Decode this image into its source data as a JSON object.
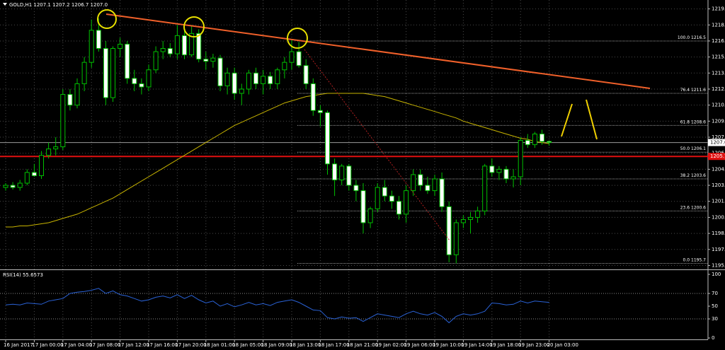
{
  "header": "GOLD,H1  1207.1 1207.2 1206.7 1207.0",
  "chart_data": [
    {
      "type": "candlestick",
      "categories": [
        "16 Jan 2017",
        null,
        null,
        null,
        "17 Jan 00:00",
        null,
        null,
        null,
        "17 Jan 04:00",
        null,
        null,
        null,
        "17 Jan 08:00",
        null,
        null,
        null,
        "17 Jan 12:00",
        null,
        null,
        null,
        "17 Jan 16:00",
        null,
        null,
        null,
        "17 Jan 20:00",
        null,
        null,
        null,
        "18 Jan 01:00",
        null,
        null,
        null,
        "18 Jan 05:00",
        null,
        null,
        null,
        "18 Jan 09:00",
        null,
        null,
        null,
        "18 Jan 13:00",
        null,
        null,
        null,
        "18 Jan 17:00",
        null,
        null,
        null,
        "18 Jan 21:00",
        null,
        null,
        null,
        "19 Jan 02:00",
        null,
        null,
        null,
        "19 Jan 06:00",
        null,
        null,
        null,
        "19 Jan 10:00",
        null,
        null,
        null,
        "19 Jan 14:00",
        null,
        null,
        null,
        "19 Jan 18:00",
        null,
        null,
        null,
        "19 Jan 23:00",
        null,
        null,
        null,
        "20 Jan 03:00"
      ],
      "open": [
        1202.8,
        1203.0,
        1202.8,
        1203.2,
        1204.2,
        1203.9,
        1205.8,
        1206.4,
        1206.6,
        1211.5,
        1210.5,
        1212.5,
        1214.5,
        1217.5,
        1215.8,
        1211.2,
        1215.8,
        1216.2,
        1213.0,
        1212.5,
        1212.2,
        1213.8,
        1215.5,
        1215.8,
        1215.3,
        1217.0,
        1215.2,
        1217.2,
        1214.8,
        1214.6,
        1214.9,
        1212.3,
        1213.5,
        1211.6,
        1212.0,
        1213.5,
        1212.5,
        1213.2,
        1212.5,
        1213.8,
        1214.5,
        1215.5,
        1214.2,
        1212.5,
        1210.0,
        1209.8,
        1205.0,
        1203.5,
        1204.8,
        1203.0,
        1202.5,
        1199.5,
        1200.8,
        1202.8,
        1202.0,
        1201.5,
        1200.3,
        1202.5,
        1204.0,
        1203.0,
        1202.5,
        1203.6,
        1201.0,
        1196.5,
        1199.5,
        1199.8,
        1200.0,
        1200.6,
        1204.8,
        1204.2,
        1204.5,
        1203.6,
        1203.8,
        1207.2,
        1206.8,
        1207.8,
        1207.1
      ],
      "high": [
        1203.2,
        1203.3,
        1203.5,
        1204.5,
        1205.0,
        1206.2,
        1207.0,
        1207.5,
        1212.0,
        1212.0,
        1213.0,
        1215.0,
        1218.5,
        1218.6,
        1216.5,
        1216.0,
        1216.8,
        1216.5,
        1213.8,
        1213.0,
        1214.3,
        1216.0,
        1216.5,
        1216.3,
        1218.0,
        1217.5,
        1218.0,
        1217.6,
        1215.5,
        1215.3,
        1215.2,
        1214.0,
        1214.0,
        1212.5,
        1213.8,
        1214.0,
        1213.8,
        1213.6,
        1214.0,
        1215.0,
        1216.6,
        1216.4,
        1214.8,
        1213.0,
        1210.5,
        1210.0,
        1205.5,
        1205.0,
        1205.0,
        1203.5,
        1203.2,
        1201.0,
        1203.2,
        1203.5,
        1202.5,
        1202.0,
        1203.0,
        1204.5,
        1204.5,
        1203.8,
        1204.0,
        1204.2,
        1201.5,
        1199.8,
        1200.2,
        1200.5,
        1201.0,
        1205.0,
        1205.5,
        1204.8,
        1204.8,
        1204.5,
        1207.5,
        1207.8,
        1208.0,
        1208.2,
        1207.2
      ],
      "low": [
        1202.5,
        1202.6,
        1202.5,
        1203.0,
        1203.8,
        1203.6,
        1205.5,
        1205.8,
        1206.3,
        1210.0,
        1210.2,
        1211.8,
        1214.0,
        1215.5,
        1210.5,
        1210.8,
        1215.0,
        1212.5,
        1211.8,
        1211.5,
        1211.8,
        1213.5,
        1214.8,
        1215.0,
        1214.8,
        1214.8,
        1215.0,
        1214.5,
        1213.8,
        1214.0,
        1211.8,
        1211.5,
        1211.0,
        1210.5,
        1211.5,
        1212.0,
        1211.5,
        1212.0,
        1212.0,
        1213.0,
        1213.8,
        1214.0,
        1212.0,
        1209.5,
        1208.5,
        1204.0,
        1202.0,
        1203.0,
        1202.5,
        1201.5,
        1198.5,
        1199.0,
        1200.5,
        1201.5,
        1200.8,
        1199.8,
        1199.5,
        1202.0,
        1202.5,
        1202.2,
        1202.0,
        1200.5,
        1195.8,
        1195.7,
        1199.0,
        1198.5,
        1199.5,
        1200.2,
        1203.8,
        1203.5,
        1203.2,
        1202.8,
        1203.0,
        1206.5,
        1206.5,
        1206.8,
        1206.7
      ],
      "close": [
        1203.0,
        1202.8,
        1203.2,
        1204.2,
        1203.9,
        1205.8,
        1206.4,
        1206.6,
        1211.5,
        1210.5,
        1212.5,
        1214.5,
        1217.5,
        1215.8,
        1211.2,
        1215.8,
        1216.2,
        1213.0,
        1212.5,
        1212.2,
        1213.8,
        1215.5,
        1215.8,
        1215.3,
        1217.0,
        1215.2,
        1217.2,
        1214.8,
        1214.6,
        1214.9,
        1212.3,
        1213.5,
        1211.6,
        1212.0,
        1213.5,
        1212.5,
        1213.2,
        1212.5,
        1213.8,
        1214.5,
        1215.5,
        1214.2,
        1212.5,
        1210.0,
        1209.8,
        1205.0,
        1203.5,
        1204.8,
        1203.0,
        1202.5,
        1199.5,
        1200.8,
        1202.8,
        1202.0,
        1201.5,
        1200.3,
        1202.5,
        1204.0,
        1203.0,
        1202.5,
        1203.6,
        1201.0,
        1196.5,
        1199.5,
        1199.8,
        1200.0,
        1200.6,
        1204.8,
        1204.2,
        1204.5,
        1203.6,
        1203.8,
        1207.2,
        1206.8,
        1207.8,
        1207.1,
        1207.0
      ],
      "ma_values": [
        1199.1,
        1199.1,
        1199.2,
        1199.2,
        1199.3,
        1199.4,
        1199.5,
        1199.7,
        1199.9,
        1200.1,
        1200.3,
        1200.6,
        1200.9,
        1201.2,
        1201.5,
        1201.8,
        1202.2,
        1202.6,
        1203.0,
        1203.4,
        1203.8,
        1204.2,
        1204.6,
        1205.0,
        1205.4,
        1205.8,
        1206.2,
        1206.6,
        1207.0,
        1207.4,
        1207.8,
        1208.2,
        1208.6,
        1208.9,
        1209.2,
        1209.5,
        1209.8,
        1210.1,
        1210.4,
        1210.7,
        1210.9,
        1211.1,
        1211.3,
        1211.4,
        1211.5,
        1211.6,
        1211.6,
        1211.6,
        1211.6,
        1211.6,
        1211.6,
        1211.5,
        1211.4,
        1211.3,
        1211.1,
        1210.9,
        1210.7,
        1210.5,
        1210.3,
        1210.1,
        1209.9,
        1209.7,
        1209.5,
        1209.3,
        1209.0,
        1208.8,
        1208.6,
        1208.4,
        1208.2,
        1208.0,
        1207.8,
        1207.6,
        1207.4,
        1207.3,
        1207.1,
        1207.0,
        1206.9
      ],
      "ma_color": "#c8b400",
      "bull_fill": "#000000",
      "bear_fill": "#ffffff",
      "candle_color": "#00c000",
      "ylim": [
        1195.2,
        1220.2
      ],
      "yticks": [
        1219.5,
        {
          "value": 1218,
          "label": "1218.0"
        },
        1216.5,
        {
          "value": 1215,
          "label": "1215.0"
        },
        1213.5,
        {
          "value": 1212,
          "label": "1212.0"
        },
        1210.5,
        {
          "value": 1209,
          "label": "1209.0"
        },
        1207.5,
        {
          "value": 1206,
          "label": "1206.0"
        },
        1204.5,
        {
          "value": 1203,
          "label": "1203.0"
        },
        1201.5,
        {
          "value": 1200,
          "label": "1200.0"
        },
        1198.5,
        {
          "value": 1197,
          "label": "1197.0"
        },
        1195.5
      ],
      "grid": true,
      "fib_levels": [
        {
          "level": "100.0",
          "price": 1216.5
        },
        {
          "level": "76.4",
          "price": 1211.6
        },
        {
          "level": "61.8",
          "price": 1208.6
        },
        {
          "level": "50.0",
          "price": 1206.1
        },
        {
          "level": "38.2",
          "price": 1203.6
        },
        {
          "level": "23.6",
          "price": 1200.6
        },
        {
          "level": "0.0",
          "price": 1195.7
        }
      ],
      "current_price": {
        "value": 1207,
        "label": "1207.0"
      },
      "support_line": 1205.7
    },
    {
      "type": "line",
      "title": "RSI(14) 55.6573",
      "values": [
        52,
        53,
        52,
        55,
        54,
        53,
        58,
        60,
        62,
        70,
        72,
        73,
        75,
        78,
        70,
        74,
        68,
        66,
        62,
        58,
        60,
        64,
        66,
        63,
        68,
        62,
        67,
        60,
        55,
        58,
        50,
        54,
        49,
        52,
        56,
        52,
        54,
        51,
        56,
        58,
        60,
        56,
        50,
        44,
        43,
        32,
        30,
        33,
        31,
        32,
        26,
        32,
        38,
        36,
        34,
        32,
        38,
        42,
        38,
        36,
        40,
        34,
        24,
        34,
        38,
        36,
        38,
        42,
        55,
        54,
        52,
        53,
        58,
        55,
        58,
        57,
        56
      ],
      "color": "#2a62d6",
      "ylim": [
        -2.2,
        105.6
      ],
      "yticks": [
        100,
        70,
        50,
        30,
        0
      ],
      "levels": [
        70,
        30
      ]
    }
  ]
}
